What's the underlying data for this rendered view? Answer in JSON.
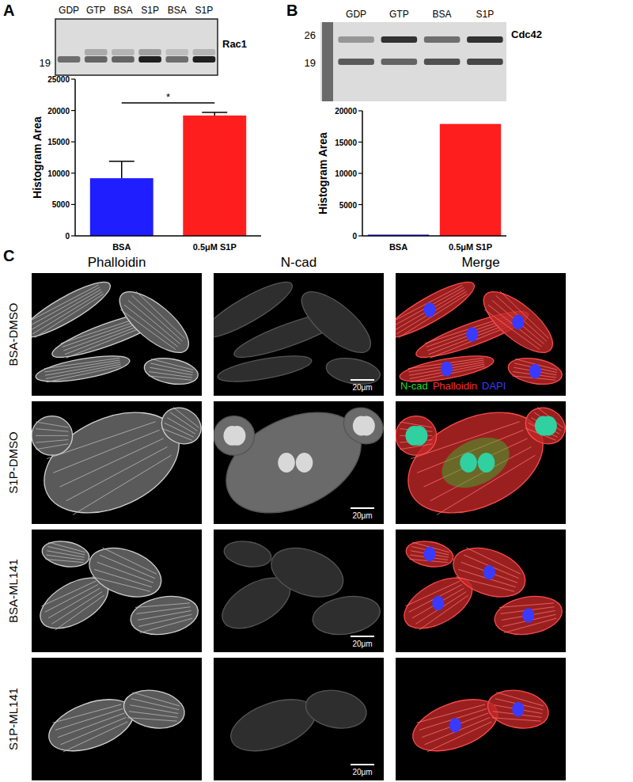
{
  "panel_labels": [
    "A",
    "B",
    "C"
  ],
  "chart_data": [
    {
      "type": "bar",
      "y_label": "Histogram Area",
      "categories": [
        "BSA",
        "0.5μM S1P"
      ],
      "values": [
        9200,
        19200
      ],
      "errors": [
        2700,
        500
      ],
      "colors": [
        "#1e1eff",
        "#ff1e1e"
      ],
      "ylim": [
        0,
        25000
      ],
      "yticks": [
        0,
        5000,
        10000,
        15000,
        20000,
        25000
      ],
      "annotations": [
        {
          "text": "*"
        }
      ]
    },
    {
      "type": "bar",
      "y_label": "Histogram Area",
      "categories": [
        "BSA",
        "0.5μM S1P"
      ],
      "values": [
        200,
        17900
      ],
      "colors": [
        "#1e1eff",
        "#ff1e1e"
      ],
      "ylim": [
        0,
        20000
      ],
      "yticks": [
        0,
        5000,
        10000,
        15000,
        20000
      ]
    }
  ],
  "blots": [
    {
      "lanes": [
        "GDP",
        "GTP",
        "BSA",
        "S1P",
        "BSA",
        "S1P"
      ],
      "protein": "Rac1",
      "markers": [
        19
      ]
    },
    {
      "lanes": [
        "GDP",
        "GTP",
        "BSA",
        "S1P"
      ],
      "protein": "Cdc42",
      "markers": [
        26,
        19
      ]
    }
  ],
  "microscopy": {
    "columns": [
      "Phalloidin",
      "N-cad",
      "Merge"
    ],
    "rows": [
      "BSA-DMSO",
      "S1P-DMSO",
      "BSA-ML141",
      "S1P-ML141"
    ],
    "scale_bar": "20μm",
    "legend": [
      {
        "name": "N-cad",
        "color": "#22dd22"
      },
      {
        "name": "Phalloidin",
        "color": "#ff2a2a"
      },
      {
        "name": "DAPI",
        "color": "#3a3aff"
      }
    ]
  }
}
